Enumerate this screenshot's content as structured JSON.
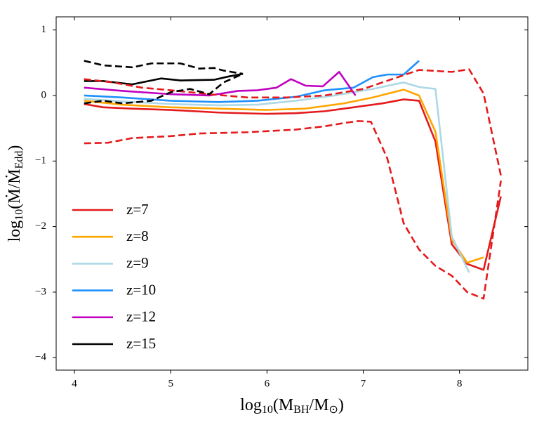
{
  "chart_data": {
    "type": "line",
    "xlabel": [
      "log",
      "10",
      "(M",
      "BH",
      "/M",
      "⊙",
      ")"
    ],
    "ylabel": [
      "log",
      "10",
      "(Ṁ/Ṁ",
      "Edd",
      ")"
    ],
    "xlim": [
      3.81,
      8.71
    ],
    "ylim": [
      -4.19,
      1.2
    ],
    "xticks": [
      4,
      5,
      6,
      7,
      8
    ],
    "yticks": [
      {
        "value": -4,
        "label": "−4"
      },
      {
        "value": -3,
        "label": "−3"
      },
      {
        "value": -2,
        "label": "−2"
      },
      {
        "value": -1,
        "label": "−1"
      },
      0,
      1
    ],
    "legend": "lower left",
    "series": [
      {
        "name": "z=7",
        "color": "#e41a1c",
        "x": [
          4.1,
          4.3,
          4.6,
          5.0,
          5.5,
          6.0,
          6.3,
          6.6,
          6.9,
          7.2,
          7.42,
          7.58,
          7.75,
          7.92,
          8.08,
          8.25,
          8.43
        ],
        "values": [
          -0.13,
          -0.18,
          -0.2,
          -0.22,
          -0.26,
          -0.28,
          -0.27,
          -0.24,
          -0.18,
          -0.12,
          -0.06,
          -0.08,
          -0.7,
          -2.27,
          -2.57,
          -2.66,
          -1.54
        ]
      },
      {
        "name": "z=8",
        "color": "#ffa500",
        "x": [
          4.1,
          4.5,
          5.0,
          5.5,
          6.0,
          6.4,
          6.8,
          7.1,
          7.42,
          7.58,
          7.75,
          7.92,
          8.08,
          8.25
        ],
        "values": [
          -0.08,
          -0.14,
          -0.18,
          -0.2,
          -0.22,
          -0.2,
          -0.12,
          -0.03,
          0.09,
          0.0,
          -0.55,
          -2.2,
          -2.55,
          -2.47
        ]
      },
      {
        "name": "z=9",
        "color": "#add8e6",
        "x": [
          4.1,
          4.5,
          5.0,
          5.5,
          5.9,
          6.3,
          6.7,
          7.1,
          7.42,
          7.58,
          7.75,
          7.92,
          8.1
        ],
        "values": [
          -0.05,
          -0.09,
          -0.13,
          -0.15,
          -0.14,
          -0.08,
          0.0,
          0.1,
          0.2,
          0.13,
          0.1,
          -2.15,
          -2.7
        ]
      },
      {
        "name": "z=10",
        "color": "#1e90ff",
        "x": [
          4.1,
          4.5,
          5.0,
          5.5,
          5.9,
          6.3,
          6.6,
          6.9,
          7.1,
          7.25,
          7.42,
          7.58
        ],
        "values": [
          0.0,
          -0.03,
          -0.08,
          -0.1,
          -0.08,
          -0.02,
          0.08,
          0.12,
          0.28,
          0.32,
          0.32,
          0.53
        ]
      },
      {
        "name": "z=12",
        "color": "#c000c0",
        "x": [
          4.1,
          4.5,
          5.0,
          5.4,
          5.7,
          5.9,
          6.1,
          6.25,
          6.4,
          6.58,
          6.75,
          6.92
        ],
        "values": [
          0.12,
          0.07,
          0.02,
          0.0,
          0.07,
          0.08,
          0.12,
          0.25,
          0.15,
          0.14,
          0.36,
          0.0
        ]
      },
      {
        "name": "z=15",
        "color": "#000000",
        "x": [
          4.1,
          4.3,
          4.6,
          4.9,
          5.1,
          5.45,
          5.6,
          5.75
        ],
        "values": [
          0.22,
          0.22,
          0.17,
          0.26,
          0.23,
          0.24,
          0.29,
          0.33
        ]
      },
      {
        "color": "#e41a1c",
        "dashed": true,
        "x": [
          4.1,
          4.4,
          4.7,
          5.0,
          5.4,
          5.8,
          6.2,
          6.6,
          7.0,
          7.3,
          7.58,
          7.92,
          8.1,
          8.25,
          8.43
        ],
        "values": [
          0.25,
          0.2,
          0.12,
          0.08,
          0.02,
          -0.03,
          -0.03,
          0.0,
          0.1,
          0.25,
          0.39,
          0.36,
          0.4,
          0.03,
          -1.22
        ]
      },
      {
        "color": "#e41a1c",
        "dashed": true,
        "x": [
          4.1,
          4.35,
          4.6,
          5.0,
          5.3,
          5.8,
          6.3,
          6.6,
          6.8,
          6.95,
          7.08,
          7.25,
          7.42,
          7.58,
          7.75,
          7.92,
          8.08,
          8.25,
          8.43
        ],
        "values": [
          -0.73,
          -0.72,
          -0.65,
          -0.62,
          -0.58,
          -0.56,
          -0.52,
          -0.47,
          -0.42,
          -0.39,
          -0.4,
          -0.96,
          -1.95,
          -2.35,
          -2.6,
          -2.75,
          -3.0,
          -3.1,
          -1.3
        ]
      },
      {
        "color": "#000000",
        "dashed": true,
        "x": [
          4.1,
          4.3,
          4.6,
          4.8,
          5.1,
          5.3,
          5.45,
          5.55,
          5.75
        ],
        "values": [
          0.53,
          0.46,
          0.43,
          0.49,
          0.49,
          0.41,
          0.42,
          0.38,
          0.33
        ]
      },
      {
        "color": "#000000",
        "dashed": true,
        "x": [
          4.1,
          4.3,
          4.5,
          4.8,
          5.0,
          5.2,
          5.4,
          5.55,
          5.75
        ],
        "values": [
          -0.12,
          -0.08,
          -0.12,
          -0.08,
          0.05,
          0.1,
          0.02,
          0.2,
          0.33
        ]
      }
    ]
  }
}
